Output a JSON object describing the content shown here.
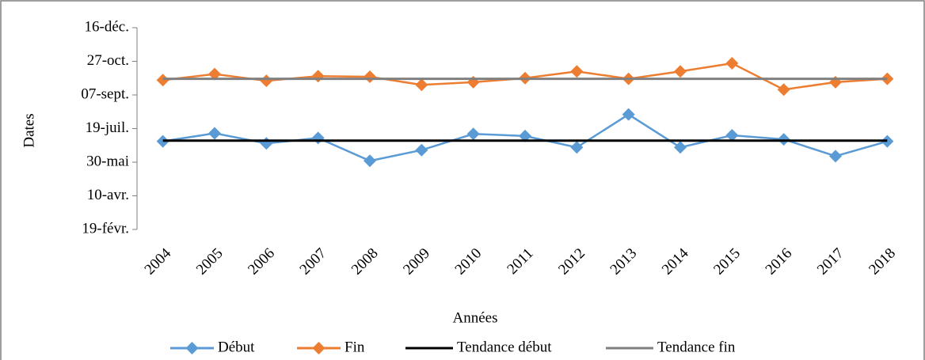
{
  "chart_data": {
    "type": "line",
    "xlabel": "Années",
    "ylabel": "Dates",
    "categories": [
      "2004",
      "2005",
      "2006",
      "2007",
      "2008",
      "2009",
      "2010",
      "2011",
      "2012",
      "2013",
      "2014",
      "2015",
      "2016",
      "2017",
      "2018"
    ],
    "series": [
      {
        "name": "Début",
        "color": "#5b9bd5",
        "marker": "diamond",
        "values": [
          181,
          193,
          178,
          186,
          152,
          168,
          192,
          189,
          172,
          221,
          172,
          190,
          184,
          159,
          181
        ]
      },
      {
        "name": "Fin",
        "color": "#ed7d31",
        "marker": "diamond",
        "values": [
          272,
          281,
          271,
          278,
          277,
          265,
          269,
          275,
          285,
          274,
          285,
          297,
          258,
          269,
          274
        ]
      },
      {
        "name": "Tendance début",
        "color": "#000000",
        "values": [
          182,
          182,
          182,
          182,
          182,
          182,
          182,
          182,
          182,
          182,
          182,
          182,
          182,
          182,
          182
        ]
      },
      {
        "name": "Tendance fin",
        "color": "#808080",
        "values": [
          274,
          274,
          274,
          274,
          274,
          274,
          274,
          274,
          274,
          274,
          274,
          274,
          274,
          274,
          274
        ]
      }
    ],
    "ylim": [
      50,
      350
    ],
    "yticks": [
      {
        "value": 50,
        "label": "19-févr."
      },
      {
        "value": 100,
        "label": "10-avr."
      },
      {
        "value": 150,
        "label": "30-mai"
      },
      {
        "value": 200,
        "label": "19-juil."
      },
      {
        "value": 250,
        "label": "07-sept."
      },
      {
        "value": 300,
        "label": "27-oct."
      },
      {
        "value": 350,
        "label": "16-déc."
      }
    ],
    "legend": "bottom"
  }
}
